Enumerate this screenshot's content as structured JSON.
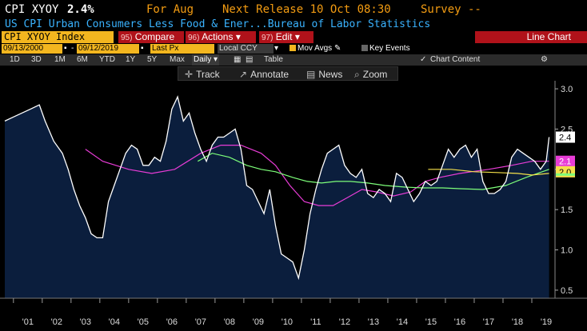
{
  "header": {
    "ticker": "CPI XYOY",
    "value": "2.4%",
    "for_label": "For Aug",
    "next_release": "Next Release 10 Oct 08:30",
    "survey": "Survey --",
    "description": "US CPI Urban Consumers Less Food & Ener...Bureau of Labor Statistics"
  },
  "toolbar": {
    "security": "CPI XYOY Index",
    "compare": {
      "num": "95)",
      "label": "Compare"
    },
    "actions": {
      "num": "96)",
      "label": "Actions"
    },
    "edit": {
      "num": "97)",
      "label": "Edit"
    },
    "chart_type": "Line Chart"
  },
  "settings": {
    "start_date": "09/13/2000",
    "end_date": "09/12/2019",
    "price_field": "Last Px",
    "currency": "Local CCY",
    "mov_avgs": "Mov Avgs",
    "key_events": "Key Events"
  },
  "ranges": {
    "items": [
      "1D",
      "3D",
      "1M",
      "6M",
      "YTD",
      "1Y",
      "5Y",
      "Max",
      "Daily"
    ],
    "table_label": "Table",
    "chart_content": "Chart Content"
  },
  "chart_tools": {
    "track": "Track",
    "annotate": "Annotate",
    "news": "News",
    "zoom": "Zoom"
  },
  "colors": {
    "fill": "#0b1e3d",
    "line": "#ffffff",
    "ma_green": "#7dff7a",
    "ma_magenta": "#e83cd6",
    "ma_yellow": "#f5e04a",
    "accent_orange": "#f3b61f",
    "accent_red": "#b0121a"
  },
  "chart_data": {
    "type": "area",
    "ylim": [
      0.4,
      3.1
    ],
    "yticks": [
      "3.0",
      "2.5",
      "2.0",
      "1.5",
      "1.0",
      "0.5"
    ],
    "xticks": [
      "'01",
      "'02",
      "'03",
      "'04",
      "'05",
      "'06",
      "'07",
      "'08",
      "'09",
      "'10",
      "'11",
      "'12",
      "'13",
      "'14",
      "'15",
      "'16",
      "'17",
      "'18",
      "'19"
    ],
    "last_labels": [
      "2.4",
      "2.1",
      "2.0"
    ],
    "series": [
      {
        "values": [
          [
            2000.7,
            2.6
          ],
          [
            2001.0,
            2.65
          ],
          [
            2001.3,
            2.7
          ],
          [
            2001.6,
            2.75
          ],
          [
            2001.9,
            2.8
          ],
          [
            2002.1,
            2.6
          ],
          [
            2002.4,
            2.35
          ],
          [
            2002.7,
            2.2
          ],
          [
            2002.9,
            2.0
          ],
          [
            2003.1,
            1.75
          ],
          [
            2003.3,
            1.55
          ],
          [
            2003.5,
            1.4
          ],
          [
            2003.7,
            1.2
          ],
          [
            2003.9,
            1.15
          ],
          [
            2004.1,
            1.15
          ],
          [
            2004.3,
            1.6
          ],
          [
            2004.5,
            1.8
          ],
          [
            2004.7,
            2.0
          ],
          [
            2004.9,
            2.2
          ],
          [
            2005.1,
            2.3
          ],
          [
            2005.3,
            2.25
          ],
          [
            2005.5,
            2.05
          ],
          [
            2005.7,
            2.05
          ],
          [
            2005.9,
            2.15
          ],
          [
            2006.1,
            2.1
          ],
          [
            2006.3,
            2.35
          ],
          [
            2006.5,
            2.75
          ],
          [
            2006.7,
            2.9
          ],
          [
            2006.9,
            2.6
          ],
          [
            2007.1,
            2.7
          ],
          [
            2007.3,
            2.45
          ],
          [
            2007.5,
            2.25
          ],
          [
            2007.7,
            2.1
          ],
          [
            2007.9,
            2.3
          ],
          [
            2008.1,
            2.4
          ],
          [
            2008.3,
            2.4
          ],
          [
            2008.5,
            2.45
          ],
          [
            2008.7,
            2.5
          ],
          [
            2008.9,
            2.25
          ],
          [
            2009.1,
            1.8
          ],
          [
            2009.3,
            1.75
          ],
          [
            2009.5,
            1.6
          ],
          [
            2009.7,
            1.45
          ],
          [
            2009.9,
            1.75
          ],
          [
            2010.1,
            1.3
          ],
          [
            2010.3,
            0.95
          ],
          [
            2010.5,
            0.9
          ],
          [
            2010.7,
            0.85
          ],
          [
            2010.9,
            0.65
          ],
          [
            2011.1,
            1.0
          ],
          [
            2011.3,
            1.45
          ],
          [
            2011.5,
            1.75
          ],
          [
            2011.7,
            2.0
          ],
          [
            2011.9,
            2.2
          ],
          [
            2012.1,
            2.25
          ],
          [
            2012.3,
            2.3
          ],
          [
            2012.5,
            2.05
          ],
          [
            2012.7,
            1.95
          ],
          [
            2012.9,
            1.9
          ],
          [
            2013.1,
            2.0
          ],
          [
            2013.3,
            1.7
          ],
          [
            2013.5,
            1.65
          ],
          [
            2013.7,
            1.75
          ],
          [
            2013.9,
            1.7
          ],
          [
            2014.1,
            1.6
          ],
          [
            2014.3,
            1.95
          ],
          [
            2014.5,
            1.9
          ],
          [
            2014.7,
            1.75
          ],
          [
            2014.9,
            1.6
          ],
          [
            2015.1,
            1.7
          ],
          [
            2015.3,
            1.85
          ],
          [
            2015.5,
            1.8
          ],
          [
            2015.7,
            1.85
          ],
          [
            2015.9,
            2.05
          ],
          [
            2016.1,
            2.25
          ],
          [
            2016.3,
            2.15
          ],
          [
            2016.5,
            2.25
          ],
          [
            2016.7,
            2.3
          ],
          [
            2016.9,
            2.15
          ],
          [
            2017.1,
            2.25
          ],
          [
            2017.3,
            1.85
          ],
          [
            2017.5,
            1.7
          ],
          [
            2017.7,
            1.7
          ],
          [
            2017.9,
            1.75
          ],
          [
            2018.1,
            1.85
          ],
          [
            2018.3,
            2.15
          ],
          [
            2018.5,
            2.25
          ],
          [
            2018.7,
            2.2
          ],
          [
            2018.9,
            2.15
          ],
          [
            2019.1,
            2.1
          ],
          [
            2019.3,
            2.0
          ],
          [
            2019.5,
            2.1
          ],
          [
            2019.6,
            2.4
          ]
        ]
      },
      {
        "values": [
          [
            2003.5,
            2.25
          ],
          [
            2004.1,
            2.1
          ],
          [
            2005.0,
            2.0
          ],
          [
            2005.8,
            1.95
          ],
          [
            2006.6,
            2.0
          ],
          [
            2007.5,
            2.2
          ],
          [
            2008.2,
            2.3
          ],
          [
            2008.9,
            2.3
          ],
          [
            2009.6,
            2.2
          ],
          [
            2010.1,
            2.05
          ],
          [
            2010.6,
            1.8
          ],
          [
            2011.1,
            1.6
          ],
          [
            2011.6,
            1.55
          ],
          [
            2012.1,
            1.55
          ],
          [
            2012.6,
            1.65
          ],
          [
            2013.1,
            1.75
          ],
          [
            2013.6,
            1.72
          ],
          [
            2014.2,
            1.67
          ],
          [
            2014.8,
            1.72
          ],
          [
            2015.3,
            1.85
          ],
          [
            2015.8,
            1.9
          ],
          [
            2016.5,
            1.95
          ],
          [
            2017.5,
            2.0
          ],
          [
            2018.3,
            2.05
          ],
          [
            2019.0,
            2.1
          ],
          [
            2019.6,
            2.1
          ]
        ]
      },
      {
        "values": [
          [
            2007.4,
            2.1
          ],
          [
            2007.9,
            2.2
          ],
          [
            2008.5,
            2.15
          ],
          [
            2009.1,
            2.05
          ],
          [
            2009.6,
            2.0
          ],
          [
            2010.1,
            1.97
          ],
          [
            2010.7,
            1.9
          ],
          [
            2011.2,
            1.85
          ],
          [
            2011.7,
            1.83
          ],
          [
            2012.2,
            1.85
          ],
          [
            2012.7,
            1.85
          ],
          [
            2013.3,
            1.83
          ],
          [
            2013.9,
            1.8
          ],
          [
            2014.6,
            1.78
          ],
          [
            2015.2,
            1.77
          ],
          [
            2015.9,
            1.77
          ],
          [
            2016.5,
            1.76
          ],
          [
            2017.3,
            1.75
          ],
          [
            2018.1,
            1.8
          ],
          [
            2018.8,
            1.9
          ],
          [
            2019.6,
            2.0
          ]
        ]
      },
      {
        "values": [
          [
            2015.4,
            2.0
          ],
          [
            2016.2,
            2.0
          ],
          [
            2017.0,
            1.97
          ],
          [
            2017.8,
            1.96
          ],
          [
            2018.5,
            1.95
          ],
          [
            2019.0,
            1.93
          ],
          [
            2019.6,
            1.95
          ]
        ]
      }
    ]
  }
}
